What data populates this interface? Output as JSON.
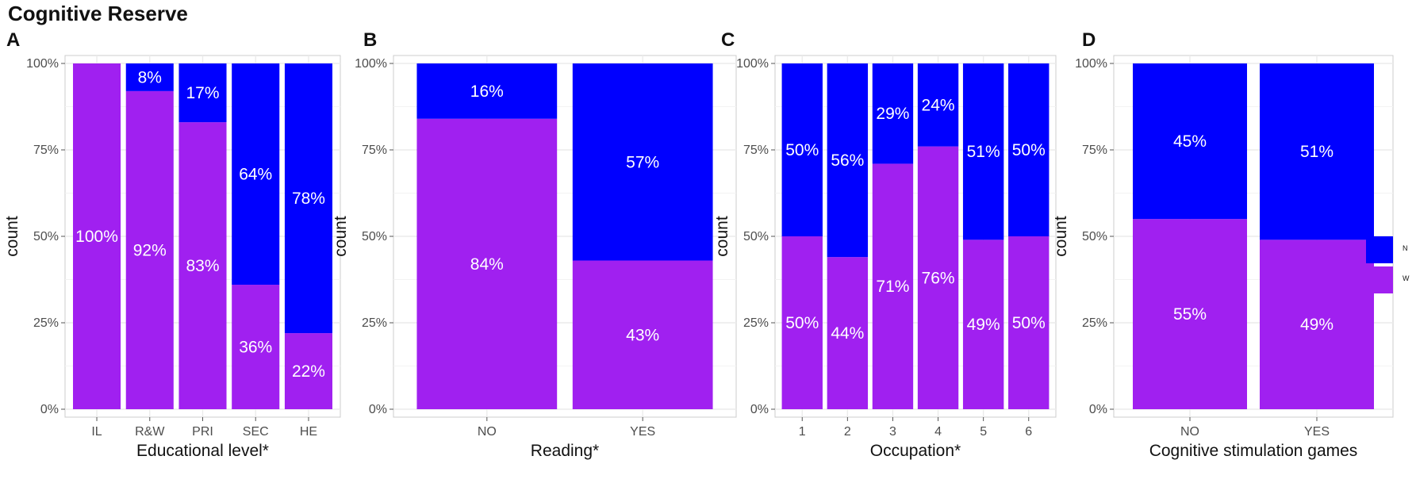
{
  "title": "Cognitive Reserve",
  "colors": {
    "N": "#0000ff",
    "W": "#a020f0",
    "grid": "#ebebeb",
    "border": "#cccccc"
  },
  "legend": {
    "items": [
      {
        "key": "N",
        "label": "N"
      },
      {
        "key": "W",
        "label": "W"
      }
    ]
  },
  "chart_data": [
    {
      "type": "bar",
      "panel_label": "A",
      "xlabel": "Educational level*",
      "ylabel": "count",
      "yticks": [
        "0%",
        "25%",
        "50%",
        "75%",
        "100%"
      ],
      "ylim": [
        0,
        100
      ],
      "categories": [
        "IL",
        "R&W",
        "PRI",
        "SEC",
        "HE"
      ],
      "series": [
        {
          "name": "W",
          "values": [
            100,
            92,
            83,
            36,
            22
          ],
          "labels": [
            "100%",
            "92%",
            "83%",
            "36%",
            "22%"
          ]
        },
        {
          "name": "N",
          "values": [
            0,
            8,
            17,
            64,
            78
          ],
          "labels": [
            "",
            "8%",
            "17%",
            "64%",
            "78%"
          ]
        }
      ]
    },
    {
      "type": "bar",
      "panel_label": "B",
      "xlabel": "Reading*",
      "ylabel": "count",
      "yticks": [
        "0%",
        "25%",
        "50%",
        "75%",
        "100%"
      ],
      "ylim": [
        0,
        100
      ],
      "categories": [
        "NO",
        "YES"
      ],
      "series": [
        {
          "name": "W",
          "values": [
            84,
            43
          ],
          "labels": [
            "84%",
            "43%"
          ]
        },
        {
          "name": "N",
          "values": [
            16,
            57
          ],
          "labels": [
            "16%",
            "57%"
          ]
        }
      ]
    },
    {
      "type": "bar",
      "panel_label": "C",
      "xlabel": "Occupation*",
      "ylabel": "count",
      "yticks": [
        "0%",
        "25%",
        "50%",
        "75%",
        "100%"
      ],
      "ylim": [
        0,
        100
      ],
      "categories": [
        "1",
        "2",
        "3",
        "4",
        "5",
        "6"
      ],
      "series": [
        {
          "name": "W",
          "values": [
            50,
            44,
            71,
            76,
            49,
            50
          ],
          "labels": [
            "50%",
            "44%",
            "71%",
            "76%",
            "49%",
            "50%"
          ]
        },
        {
          "name": "N",
          "values": [
            50,
            56,
            29,
            24,
            51,
            50
          ],
          "labels": [
            "50%",
            "56%",
            "29%",
            "24%",
            "51%",
            "50%"
          ]
        }
      ]
    },
    {
      "type": "bar",
      "panel_label": "D",
      "xlabel": "Cognitive stimulation games",
      "ylabel": "count",
      "yticks": [
        "0%",
        "25%",
        "50%",
        "75%",
        "100%"
      ],
      "ylim": [
        0,
        100
      ],
      "categories": [
        "NO",
        "YES"
      ],
      "series": [
        {
          "name": "W",
          "values": [
            55,
            49
          ],
          "labels": [
            "55%",
            "49%"
          ]
        },
        {
          "name": "N",
          "values": [
            45,
            51
          ],
          "labels": [
            "45%",
            "51%"
          ]
        }
      ]
    }
  ]
}
